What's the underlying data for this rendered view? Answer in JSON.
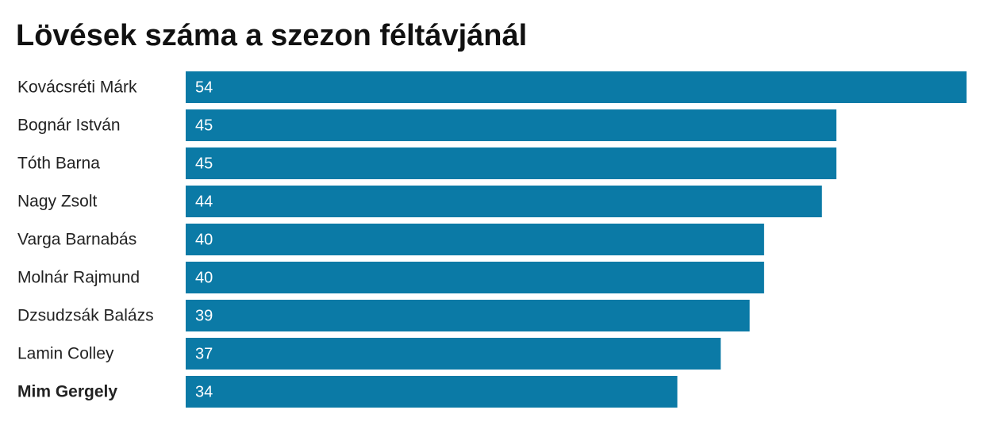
{
  "chart_data": {
    "type": "bar",
    "orientation": "horizontal",
    "title": "Lövések száma a szezon féltávjánál",
    "categories": [
      "Kovácsréti Márk",
      "Bognár István",
      "Tóth Barna",
      "Nagy Zsolt",
      "Varga Barnabás",
      "Molnár Rajmund",
      "Dzsudzsák Balázs",
      "Lamin Colley",
      "Mim Gergely"
    ],
    "values": [
      54,
      45,
      45,
      44,
      40,
      40,
      39,
      37,
      34
    ],
    "color": "#0b7aa6",
    "highlight": "Mim Gergely"
  }
}
